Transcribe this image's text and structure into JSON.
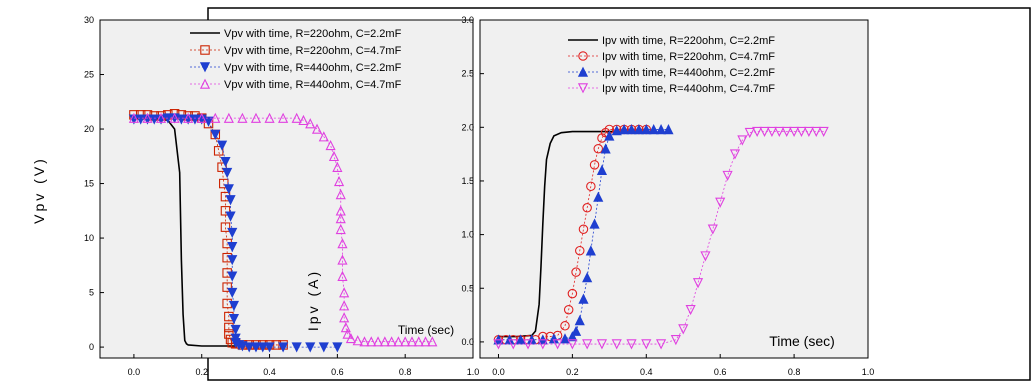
{
  "chart_data": [
    {
      "type": "scatter",
      "title": "",
      "xlabel": "",
      "ylabel": "Vpv (V)",
      "xlim": [
        -0.1,
        1.0
      ],
      "ylim": [
        -1,
        30
      ],
      "x_ticks": [
        "0.0",
        "0.2",
        "0.4",
        "0.6",
        "0.8",
        "1.0"
      ],
      "y_ticks": [
        "0",
        "5",
        "10",
        "15",
        "20",
        "25",
        "30"
      ],
      "annotation": "Time (sec)",
      "legend_placement": "top",
      "series": [
        {
          "name": "Vpv with time, R=220ohm, C=2.2mF",
          "marker": "line",
          "color": "#000000",
          "x": [
            0.0,
            0.05,
            0.1,
            0.12,
            0.135,
            0.14,
            0.145,
            0.15,
            0.155,
            0.16,
            0.2,
            0.3
          ],
          "y": [
            21.0,
            21.0,
            20.8,
            20.0,
            16.0,
            8.0,
            3.0,
            0.6,
            0.3,
            0.2,
            0.1,
            0.1
          ]
        },
        {
          "name": "Vpv with time, R=220ohm, C=4.7mF",
          "marker": "square-open",
          "color": "#cc2200",
          "x": [
            0.0,
            0.02,
            0.04,
            0.06,
            0.08,
            0.1,
            0.12,
            0.14,
            0.16,
            0.18,
            0.2,
            0.22,
            0.24,
            0.25,
            0.26,
            0.265,
            0.27,
            0.27,
            0.27,
            0.275,
            0.275,
            0.275,
            0.275,
            0.275,
            0.28,
            0.28,
            0.28,
            0.285,
            0.29,
            0.3,
            0.32,
            0.34,
            0.36,
            0.38,
            0.4,
            0.42,
            0.44
          ],
          "y": [
            21.3,
            21.3,
            21.3,
            21.2,
            21.2,
            21.3,
            21.4,
            21.3,
            21.2,
            21.2,
            21.0,
            20.5,
            19.5,
            18.0,
            16.5,
            15.0,
            13.8,
            12.5,
            11.0,
            9.5,
            8.2,
            6.8,
            5.5,
            4.0,
            2.8,
            1.8,
            1.2,
            0.7,
            0.4,
            0.3,
            0.2,
            0.2,
            0.2,
            0.2,
            0.2,
            0.2,
            0.2
          ]
        },
        {
          "name": "Vpv with time, R=440ohm, C=2.2mF",
          "marker": "triangle-down-filled",
          "color": "#1f3fd0",
          "x": [
            0.0,
            0.02,
            0.04,
            0.06,
            0.08,
            0.1,
            0.12,
            0.14,
            0.16,
            0.18,
            0.2,
            0.22,
            0.24,
            0.26,
            0.27,
            0.275,
            0.28,
            0.285,
            0.285,
            0.29,
            0.29,
            0.29,
            0.29,
            0.29,
            0.295,
            0.295,
            0.3,
            0.3,
            0.3,
            0.31,
            0.32,
            0.34,
            0.36,
            0.38,
            0.4,
            0.44,
            0.48,
            0.52,
            0.56,
            0.6
          ],
          "y": [
            20.9,
            20.9,
            20.9,
            20.9,
            20.9,
            21.0,
            21.0,
            20.9,
            20.9,
            20.9,
            20.9,
            20.7,
            19.5,
            18.5,
            17.0,
            16.0,
            14.5,
            13.5,
            12.0,
            10.5,
            9.2,
            8.0,
            6.5,
            5.0,
            3.8,
            2.6,
            1.6,
            0.8,
            0.4,
            0.2,
            0.1,
            0.0,
            0.0,
            0.0,
            0.0,
            0.0,
            0.0,
            0.0,
            0.0,
            0.0
          ]
        },
        {
          "name": "Vpv with time, R=440ohm, C=4.7mF",
          "marker": "triangle-up-open",
          "color": "#e040e0",
          "x": [
            0.0,
            0.04,
            0.08,
            0.12,
            0.16,
            0.2,
            0.24,
            0.28,
            0.32,
            0.36,
            0.4,
            0.44,
            0.48,
            0.5,
            0.52,
            0.54,
            0.56,
            0.58,
            0.59,
            0.6,
            0.605,
            0.61,
            0.61,
            0.61,
            0.61,
            0.615,
            0.615,
            0.615,
            0.62,
            0.62,
            0.62,
            0.625,
            0.63,
            0.64,
            0.66,
            0.68,
            0.7,
            0.72,
            0.74,
            0.76,
            0.78,
            0.8,
            0.82,
            0.84,
            0.86,
            0.88
          ],
          "y": [
            21.0,
            21.0,
            21.0,
            21.0,
            21.0,
            21.0,
            21.0,
            21.0,
            21.0,
            21.0,
            21.0,
            21.0,
            21.0,
            20.8,
            20.5,
            20.0,
            19.3,
            18.5,
            17.5,
            16.5,
            15.2,
            14.0,
            12.5,
            11.8,
            10.8,
            9.5,
            8.0,
            6.5,
            5.0,
            3.8,
            2.7,
            1.8,
            1.2,
            0.8,
            0.6,
            0.5,
            0.5,
            0.5,
            0.5,
            0.5,
            0.5,
            0.5,
            0.5,
            0.5,
            0.5,
            0.5
          ]
        }
      ]
    },
    {
      "type": "scatter",
      "title": "",
      "xlabel": "Time (sec)",
      "ylabel": "Ipv (A)",
      "xlim": [
        -0.05,
        1.0
      ],
      "ylim": [
        -0.15,
        3.0
      ],
      "x_ticks": [
        "0.0",
        "0.2",
        "0.4",
        "0.6",
        "0.8",
        "1.0"
      ],
      "y_ticks": [
        "0.0",
        "0.5",
        "1.0",
        "1.5",
        "2.0",
        "2.5",
        "3.0"
      ],
      "legend_placement": "top-left",
      "series": [
        {
          "name": "Ipv with time, R=220ohm, C=2.2mF",
          "marker": "line",
          "color": "#000000",
          "x": [
            0.0,
            0.05,
            0.09,
            0.1,
            0.11,
            0.115,
            0.12,
            0.125,
            0.13,
            0.14,
            0.15,
            0.17,
            0.2,
            0.3,
            0.4
          ],
          "y": [
            0.05,
            0.05,
            0.06,
            0.1,
            0.35,
            0.7,
            1.1,
            1.45,
            1.7,
            1.85,
            1.92,
            1.95,
            1.96,
            1.96,
            1.96
          ]
        },
        {
          "name": "Ipv with time, R=220ohm, C=4.7mF",
          "marker": "circle-open",
          "color": "#e02020",
          "x": [
            0.0,
            0.02,
            0.04,
            0.06,
            0.08,
            0.1,
            0.12,
            0.14,
            0.16,
            0.18,
            0.19,
            0.2,
            0.21,
            0.22,
            0.23,
            0.24,
            0.25,
            0.26,
            0.27,
            0.28,
            0.29,
            0.3,
            0.32,
            0.34,
            0.36,
            0.38,
            0.4
          ],
          "y": [
            0.02,
            0.02,
            0.02,
            0.02,
            0.02,
            0.02,
            0.05,
            0.05,
            0.06,
            0.15,
            0.3,
            0.45,
            0.65,
            0.85,
            1.05,
            1.25,
            1.45,
            1.65,
            1.8,
            1.9,
            1.95,
            1.98,
            1.98,
            1.98,
            1.98,
            1.98,
            1.98
          ]
        },
        {
          "name": "Ipv with time, R=440ohm, C=2.2mF",
          "marker": "triangle-up-filled",
          "color": "#1f3fd0",
          "x": [
            0.0,
            0.03,
            0.06,
            0.09,
            0.12,
            0.15,
            0.18,
            0.2,
            0.21,
            0.22,
            0.23,
            0.24,
            0.25,
            0.26,
            0.27,
            0.28,
            0.29,
            0.3,
            0.32,
            0.34,
            0.36,
            0.38,
            0.4,
            0.42,
            0.44,
            0.46
          ],
          "y": [
            0.02,
            0.02,
            0.02,
            0.02,
            0.02,
            0.03,
            0.03,
            0.05,
            0.1,
            0.2,
            0.4,
            0.6,
            0.85,
            1.1,
            1.35,
            1.6,
            1.8,
            1.92,
            1.97,
            1.98,
            1.98,
            1.98,
            1.98,
            1.98,
            1.98,
            1.98
          ]
        },
        {
          "name": "Ipv with time, R=440ohm, C=4.7mF",
          "marker": "triangle-down-open",
          "color": "#e040e0",
          "x": [
            0.0,
            0.04,
            0.08,
            0.12,
            0.16,
            0.2,
            0.24,
            0.28,
            0.32,
            0.36,
            0.4,
            0.44,
            0.48,
            0.5,
            0.52,
            0.54,
            0.56,
            0.58,
            0.6,
            0.62,
            0.64,
            0.66,
            0.68,
            0.7,
            0.72,
            0.74,
            0.76,
            0.78,
            0.8,
            0.82,
            0.84,
            0.86,
            0.88
          ],
          "y": [
            -0.02,
            -0.02,
            -0.02,
            -0.02,
            -0.02,
            -0.02,
            -0.02,
            -0.02,
            -0.02,
            -0.02,
            -0.02,
            -0.02,
            0.02,
            0.12,
            0.3,
            0.55,
            0.8,
            1.05,
            1.3,
            1.55,
            1.75,
            1.88,
            1.95,
            1.96,
            1.96,
            1.96,
            1.96,
            1.96,
            1.96,
            1.96,
            1.96,
            1.96,
            1.96
          ]
        }
      ]
    }
  ]
}
